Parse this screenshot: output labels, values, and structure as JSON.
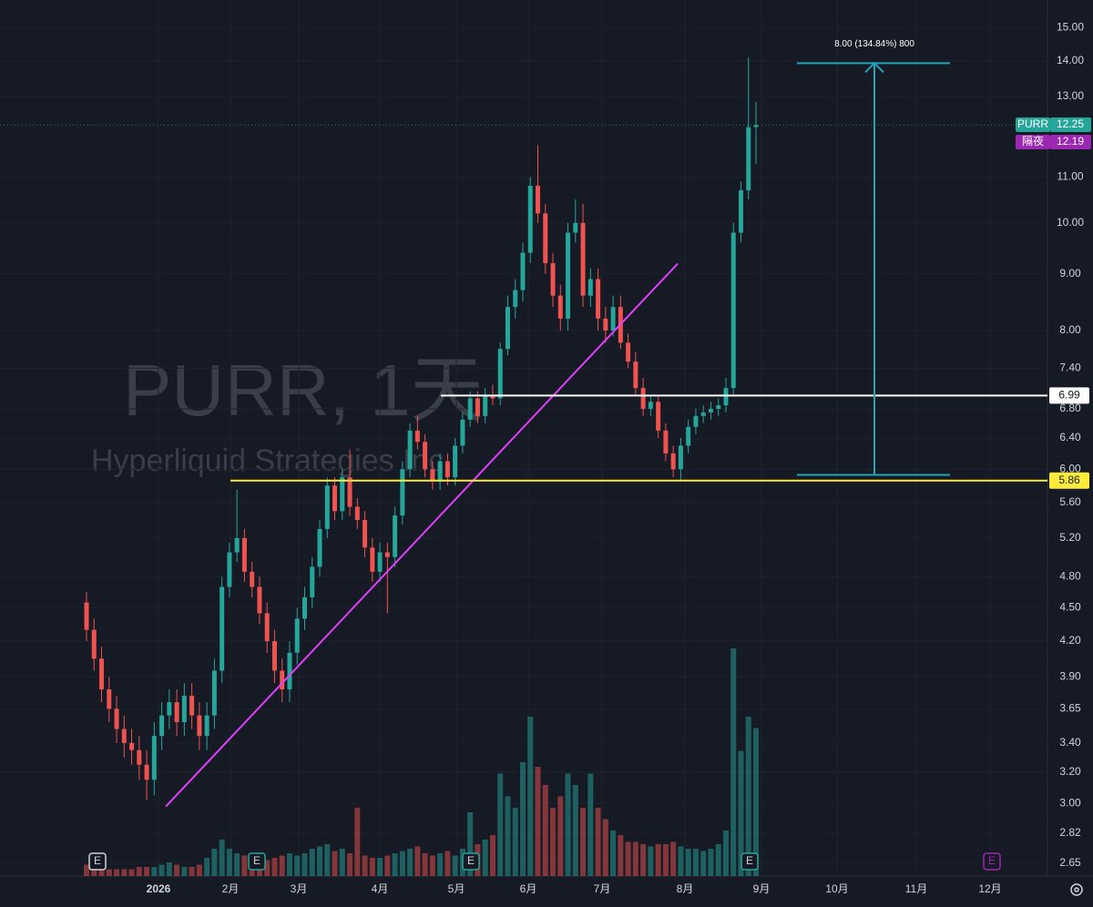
{
  "chart_data": {
    "type": "candlestick",
    "watermark_title": "PURR, 1天",
    "watermark_subtitle": "Hyperliquid Strategies Inc",
    "log_scale": true,
    "grid": true,
    "up_color": "#26a69a",
    "down_color": "#ef5350",
    "ylim": [
      2.58,
      15.88
    ],
    "yticks": [
      {
        "value": 15,
        "label": "15.00"
      },
      {
        "value": 14,
        "label": "14.00"
      },
      {
        "value": 13,
        "label": "13.00"
      },
      {
        "value": 11,
        "label": "11.00"
      },
      {
        "value": 10,
        "label": "10.00"
      },
      {
        "value": 9,
        "label": "9.00"
      },
      {
        "value": 8,
        "label": "8.00"
      },
      {
        "value": 7.4,
        "label": "7.40"
      },
      {
        "value": 6.8,
        "label": "6.80"
      },
      {
        "value": 6.4,
        "label": "6.40"
      },
      {
        "value": 6,
        "label": "6.00"
      },
      {
        "value": 5.6,
        "label": "5.60"
      },
      {
        "value": 5.2,
        "label": "5.20"
      },
      {
        "value": 4.8,
        "label": "4.80"
      },
      {
        "value": 4.5,
        "label": "4.50"
      },
      {
        "value": 4.2,
        "label": "4.20"
      },
      {
        "value": 3.9,
        "label": "3.90"
      },
      {
        "value": 3.65,
        "label": "3.65"
      },
      {
        "value": 3.4,
        "label": "3.40"
      },
      {
        "value": 3.2,
        "label": "3.20"
      },
      {
        "value": 3,
        "label": "3.00"
      },
      {
        "value": 2.82,
        "label": "2.82"
      },
      {
        "value": 2.65,
        "label": "2.65"
      }
    ],
    "xticks": [
      "2026",
      "2月",
      "3月",
      "4月",
      "5月",
      "6月",
      "7月",
      "8月",
      "9月",
      "10月",
      "11月",
      "12月"
    ],
    "open": [
      4.55,
      4.3,
      4.05,
      3.8,
      3.65,
      3.5,
      3.4,
      3.35,
      3.25,
      3.15,
      3.45,
      3.6,
      3.7,
      3.55,
      3.75,
      3.6,
      3.45,
      3.6,
      3.95,
      4.7,
      5.05,
      5.2,
      4.85,
      4.7,
      4.45,
      4.2,
      3.95,
      3.8,
      4.1,
      4.4,
      4.6,
      4.9,
      5.3,
      5.8,
      5.5,
      5.9,
      5.55,
      5.4,
      5.1,
      4.85,
      5.05,
      5.0,
      5.45,
      6.0,
      6.5,
      6.35,
      6.0,
      5.85,
      6.1,
      5.9,
      6.3,
      6.65,
      6.95,
      6.7,
      7.0,
      6.95,
      7.7,
      8.4,
      8.7,
      9.4,
      10.8,
      10.2,
      9.2,
      8.6,
      8.2,
      9.8,
      10.0,
      8.6,
      8.9,
      8.2,
      8.0,
      8.4,
      7.8,
      7.5,
      7.1,
      6.8,
      6.9,
      6.5,
      6.2,
      6.0,
      6.3,
      6.55,
      6.7,
      6.75,
      6.8,
      6.85,
      7.1,
      9.8,
      10.7,
      12.2
    ],
    "high": [
      4.65,
      4.4,
      4.15,
      3.9,
      3.75,
      3.6,
      3.5,
      3.45,
      3.35,
      3.55,
      3.7,
      3.8,
      3.8,
      3.85,
      3.85,
      3.7,
      3.7,
      4.05,
      4.8,
      5.15,
      5.75,
      5.3,
      4.95,
      4.8,
      4.55,
      4.3,
      4.05,
      4.2,
      4.5,
      4.7,
      5.0,
      5.4,
      5.9,
      5.9,
      6.0,
      6.25,
      5.65,
      5.5,
      5.2,
      5.15,
      5.15,
      5.55,
      6.1,
      6.6,
      6.7,
      6.45,
      6.1,
      6.2,
      6.2,
      6.4,
      6.75,
      7.05,
      7.05,
      7.1,
      7.15,
      7.8,
      8.6,
      8.9,
      9.6,
      11.0,
      11.75,
      10.4,
      9.4,
      8.8,
      10.0,
      10.5,
      10.4,
      9.1,
      9.1,
      8.4,
      8.6,
      8.6,
      7.95,
      7.65,
      7.25,
      7.0,
      7.0,
      6.6,
      6.3,
      6.4,
      6.65,
      6.8,
      6.85,
      6.9,
      6.95,
      7.25,
      10.0,
      10.9,
      14.1,
      12.85
    ],
    "low": [
      4.2,
      3.95,
      3.7,
      3.55,
      3.4,
      3.3,
      3.25,
      3.15,
      3.02,
      3.05,
      3.35,
      3.5,
      3.45,
      3.45,
      3.5,
      3.35,
      3.35,
      3.5,
      3.85,
      4.6,
      4.95,
      4.75,
      4.6,
      4.35,
      4.1,
      3.85,
      3.7,
      3.7,
      4.0,
      4.3,
      4.5,
      4.8,
      5.2,
      5.4,
      5.4,
      5.45,
      5.3,
      5.0,
      4.75,
      4.75,
      4.45,
      4.9,
      5.35,
      5.9,
      6.25,
      5.9,
      5.75,
      5.75,
      5.8,
      5.8,
      6.2,
      6.55,
      6.6,
      6.6,
      6.85,
      6.85,
      7.6,
      8.2,
      8.5,
      9.2,
      10.0,
      9.0,
      8.4,
      8.0,
      8.0,
      9.6,
      8.4,
      8.4,
      8.0,
      7.8,
      7.9,
      7.7,
      7.4,
      7.0,
      6.7,
      6.7,
      6.4,
      6.1,
      5.9,
      5.85,
      6.2,
      6.45,
      6.6,
      6.65,
      6.7,
      6.75,
      7.0,
      9.6,
      10.5,
      11.3
    ],
    "close": [
      4.3,
      4.05,
      3.8,
      3.65,
      3.5,
      3.4,
      3.35,
      3.25,
      3.15,
      3.45,
      3.6,
      3.7,
      3.55,
      3.75,
      3.6,
      3.45,
      3.6,
      3.95,
      4.7,
      5.05,
      5.2,
      4.85,
      4.7,
      4.45,
      4.2,
      3.95,
      3.8,
      4.1,
      4.4,
      4.6,
      4.9,
      5.3,
      5.8,
      5.5,
      5.9,
      5.55,
      5.4,
      5.1,
      4.85,
      5.05,
      5.0,
      5.45,
      6.0,
      6.5,
      6.35,
      6.0,
      5.85,
      6.1,
      5.9,
      6.3,
      6.65,
      6.95,
      6.7,
      7.0,
      6.95,
      7.7,
      8.4,
      8.7,
      9.4,
      10.8,
      10.2,
      9.2,
      8.6,
      8.2,
      9.8,
      10.0,
      8.6,
      8.9,
      8.2,
      8.0,
      8.4,
      7.8,
      7.5,
      7.1,
      6.8,
      6.9,
      6.5,
      6.2,
      6.0,
      6.3,
      6.55,
      6.7,
      6.75,
      6.8,
      6.85,
      7.1,
      9.8,
      10.7,
      12.2,
      12.25
    ],
    "volume": [
      5,
      4,
      4,
      3,
      3,
      3,
      3,
      4,
      4,
      4,
      5,
      6,
      5,
      4,
      4,
      5,
      8,
      12,
      16,
      12,
      10,
      9,
      8,
      8,
      7,
      8,
      9,
      10,
      9,
      10,
      12,
      13,
      14,
      11,
      12,
      10,
      30,
      9,
      8,
      8,
      9,
      10,
      11,
      12,
      13,
      10,
      9,
      10,
      11,
      9,
      12,
      28,
      14,
      16,
      18,
      45,
      35,
      30,
      50,
      70,
      48,
      40,
      30,
      35,
      45,
      40,
      30,
      45,
      30,
      25,
      20,
      18,
      15,
      15,
      14,
      13,
      14,
      14,
      15,
      13,
      12,
      12,
      11,
      12,
      14,
      20,
      100,
      55,
      70,
      65
    ],
    "hlines": [
      {
        "value": 6.99,
        "color": "#ffffff"
      },
      {
        "value": 5.86,
        "color": "#ffeb3b"
      }
    ],
    "trendline": {
      "values": [
        2.98,
        9.19
      ],
      "color": "#e040fb"
    },
    "measure": {
      "label": "8.00 (134.84%) 800",
      "from": 5.93,
      "to": 13.93,
      "color": "#22a5b8"
    },
    "last_price": {
      "name": "PURR",
      "value": 12.25,
      "color": "#26a69a"
    },
    "overnight_price": {
      "name": "隔夜",
      "value": 12.19,
      "color": "#9c27b0"
    },
    "events": [
      "E",
      "E",
      "E",
      "E",
      "E"
    ]
  }
}
